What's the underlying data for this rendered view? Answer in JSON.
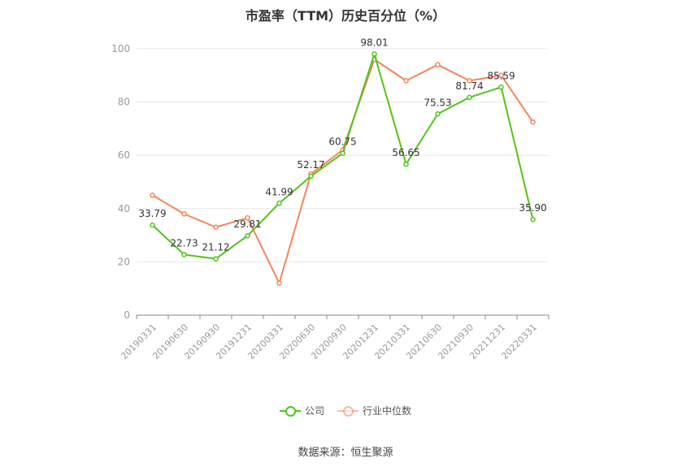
{
  "chart_data": {
    "type": "line",
    "title": "市盈率（TTM）历史百分位（%）",
    "categories": [
      "20190331",
      "20190630",
      "20190930",
      "20191231",
      "20200331",
      "20200630",
      "20200930",
      "20201231",
      "20210331",
      "20210630",
      "20210930",
      "20211231",
      "20220331"
    ],
    "ylim": [
      0,
      100
    ],
    "yticks": [
      0,
      20,
      40,
      60,
      80,
      100
    ],
    "grid": true,
    "legend_position": "bottom",
    "series": [
      {
        "name": "公司",
        "color": "#52c41a",
        "values": [
          33.79,
          22.73,
          21.12,
          29.81,
          41.99,
          52.17,
          60.75,
          98.01,
          56.65,
          75.53,
          81.74,
          85.59,
          35.9
        ],
        "labels": [
          "33.79",
          "22.73",
          "21.12",
          "29.81",
          "41.99",
          "52.17",
          "60.75",
          "98.01",
          "56.65",
          "75.53",
          "81.74",
          "85.59",
          "35.90"
        ]
      },
      {
        "name": "行业中位数",
        "color": "#f5845a",
        "values": [
          45,
          38,
          33,
          36.5,
          12,
          53,
          62,
          96,
          88,
          94,
          88,
          90,
          72.5
        ]
      }
    ]
  },
  "source": "数据来源：恒生聚源"
}
